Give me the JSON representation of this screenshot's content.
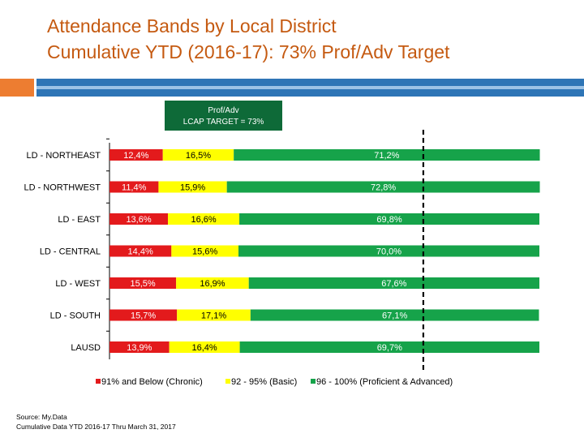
{
  "title_line1": "Attendance Bands by Local District",
  "title_line2": "Cumulative YTD (2016-17): 73% Prof/Adv Target",
  "target": {
    "label_line1": "Prof/Adv",
    "label_line2": "LCAP TARGET = 73%",
    "value": 73,
    "color": "#0e6a38"
  },
  "source_line1": "Source: My.Data",
  "source_line2": "Cumulative Data YTD 2016-17 Thru March 31, 2017",
  "chart_data": {
    "type": "bar",
    "orientation": "horizontal",
    "stacked": true,
    "percent_stacked": true,
    "categories": [
      "LD - NORTHEAST",
      "LD - NORTHWEST",
      "LD - EAST",
      "LD - CENTRAL",
      "LD - WEST",
      "LD - SOUTH",
      "LAUSD"
    ],
    "series": [
      {
        "name": "91% and Below (Chronic)",
        "color": "#e31a1c",
        "values": [
          12.4,
          11.4,
          13.6,
          14.4,
          15.5,
          15.7,
          13.9
        ],
        "labels": [
          "12,4%",
          "11,4%",
          "13,6%",
          "14,4%",
          "15,5%",
          "15,7%",
          "13,9%"
        ]
      },
      {
        "name": "92 - 95% (Basic)",
        "color": "#ffff00",
        "values": [
          16.5,
          15.9,
          16.6,
          15.6,
          16.9,
          17.1,
          16.4
        ],
        "labels": [
          "16,5%",
          "15,9%",
          "16,6%",
          "15,6%",
          "16,9%",
          "17,1%",
          "16,4%"
        ]
      },
      {
        "name": "96 - 100% (Proficient & Advanced)",
        "color": "#16a34a",
        "values": [
          71.2,
          72.8,
          69.8,
          70.0,
          67.6,
          67.1,
          69.7
        ],
        "labels": [
          "71,2%",
          "72,8%",
          "69,8%",
          "70,0%",
          "67,6%",
          "67,1%",
          "69,7%"
        ]
      }
    ],
    "xlim": [
      0,
      100
    ],
    "legend_position": "bottom",
    "grid": false
  }
}
